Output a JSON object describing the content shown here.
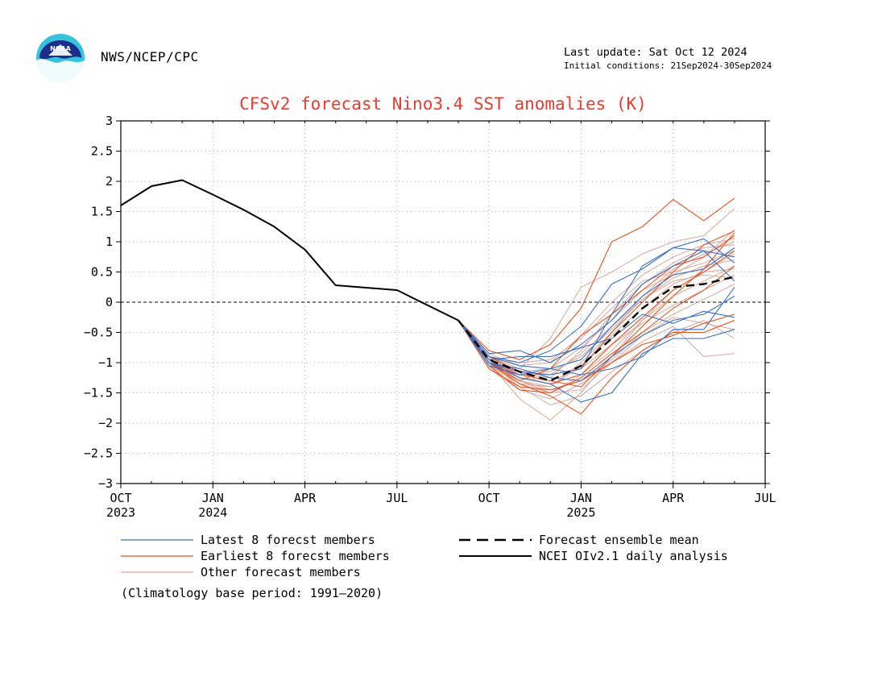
{
  "header": {
    "agency": "NWS/NCEP/CPC",
    "last_update": "Last update: Sat Oct 12 2024",
    "initial_conditions": "Initial conditions: 21Sep2024-30Sep2024",
    "logo_text": "NOAA"
  },
  "footnote": "(Climatology base period: 1991—2020)",
  "colors": {
    "title": "#ee3a2c",
    "latest": "#3a6fc4",
    "earliest": "#e8521f",
    "other": "#d8a89c",
    "mean": "#000000",
    "analysis": "#000000"
  },
  "chart_data": {
    "type": "line",
    "title": "CFSv2 forecast Nino3.4 SST anomalies (K)",
    "ylabel": "",
    "xlabel": "",
    "ylim": [
      -3,
      3
    ],
    "yticks": [
      "3",
      "2.5",
      "2",
      "1.5",
      "1",
      "0.5",
      "0",
      "−0.5",
      "−1",
      "−1.5",
      "−2",
      "−2.5",
      "−3"
    ],
    "xlim": [
      "2023-10",
      "2025-07"
    ],
    "xticks": [
      {
        "date": "2023-10",
        "label": "OCT",
        "year": "2023"
      },
      {
        "date": "2024-01",
        "label": "JAN",
        "year": "2024"
      },
      {
        "date": "2024-04",
        "label": "APR",
        "year": ""
      },
      {
        "date": "2024-07",
        "label": "JUL",
        "year": ""
      },
      {
        "date": "2024-10",
        "label": "OCT",
        "year": ""
      },
      {
        "date": "2025-01",
        "label": "JAN",
        "year": "2025"
      },
      {
        "date": "2025-04",
        "label": "APR",
        "year": ""
      },
      {
        "date": "2025-07",
        "label": "JUL",
        "year": ""
      }
    ],
    "grid": true,
    "zero_line": true,
    "legend": {
      "items": [
        {
          "label": "Latest 8 forecst members",
          "style": "latest"
        },
        {
          "label": "Earliest 8 forecst members",
          "style": "earliest"
        },
        {
          "label": "Other forecast members",
          "style": "other"
        },
        {
          "label": "Forecast ensemble mean",
          "style": "mean"
        },
        {
          "label": "NCEI OIv2.1 daily analysis",
          "style": "analysis"
        }
      ]
    },
    "forecast_months": [
      "2024-09",
      "2024-10",
      "2024-11",
      "2024-12",
      "2025-01",
      "2025-02",
      "2025-03",
      "2025-04",
      "2025-05",
      "2025-06"
    ],
    "analysis": {
      "name": "NCEI OIv2.1 daily analysis",
      "points": [
        {
          "x": "2023-10",
          "y": 1.6
        },
        {
          "x": "2023-11",
          "y": 1.92
        },
        {
          "x": "2023-12",
          "y": 2.02
        },
        {
          "x": "2024-01",
          "y": 1.78
        },
        {
          "x": "2024-02",
          "y": 1.53
        },
        {
          "x": "2024-03",
          "y": 1.25
        },
        {
          "x": "2024-04",
          "y": 0.87
        },
        {
          "x": "2024-05",
          "y": 0.28
        },
        {
          "x": "2024-07",
          "y": 0.2
        },
        {
          "x": "2024-08",
          "y": -0.05
        },
        {
          "x": "2024-09",
          "y": -0.3
        }
      ]
    },
    "ensemble_mean": {
      "name": "Forecast ensemble mean",
      "values": [
        -0.3,
        -0.95,
        -1.15,
        -1.3,
        -1.05,
        -0.6,
        -0.1,
        0.25,
        0.3,
        0.42
      ]
    },
    "latest_members": [
      [
        -0.3,
        -1.0,
        -1.25,
        -1.35,
        -1.65,
        -1.5,
        -0.85,
        -0.6,
        -0.6,
        -0.45
      ],
      [
        -0.3,
        -0.85,
        -0.8,
        -1.0,
        -0.7,
        -0.3,
        0.3,
        0.6,
        0.85,
        0.75
      ],
      [
        -0.3,
        -0.9,
        -1.05,
        -1.1,
        -0.95,
        -0.4,
        0.1,
        0.45,
        0.55,
        0.9
      ],
      [
        -0.3,
        -1.0,
        -1.15,
        -1.2,
        -1.1,
        -0.2,
        0.6,
        0.9,
        0.85,
        0.35
      ],
      [
        -0.3,
        -0.95,
        -0.9,
        -0.9,
        -0.75,
        -0.6,
        -0.2,
        -0.35,
        -0.15,
        -0.25
      ],
      [
        -0.3,
        -1.05,
        -1.2,
        -1.1,
        -1.2,
        -1.1,
        -0.9,
        -0.45,
        -0.45,
        0.25
      ],
      [
        -0.3,
        -1.0,
        -1.1,
        -1.25,
        -1.3,
        -0.9,
        -0.55,
        -0.3,
        -0.2,
        0.1
      ],
      [
        -0.3,
        -0.9,
        -1.0,
        -0.8,
        -0.4,
        0.3,
        0.55,
        0.9,
        1.05,
        0.65
      ]
    ],
    "earliest_members": [
      [
        -0.3,
        -1.0,
        -1.35,
        -1.55,
        -1.85,
        -1.25,
        -0.8,
        -0.5,
        -0.5,
        -0.3
      ],
      [
        -0.3,
        -0.8,
        -0.95,
        -0.7,
        -0.1,
        1.0,
        1.25,
        1.7,
        1.35,
        1.72
      ],
      [
        -0.3,
        -1.1,
        -1.4,
        -1.45,
        -1.3,
        -1.0,
        -0.7,
        -0.55,
        -0.35,
        -0.2
      ],
      [
        -0.3,
        -1.0,
        -1.2,
        -1.3,
        -1.4,
        -0.9,
        -0.4,
        0.1,
        0.55,
        1.15
      ],
      [
        -0.3,
        -0.9,
        -1.15,
        -1.2,
        -1.1,
        -0.5,
        0.0,
        0.5,
        0.95,
        1.18
      ],
      [
        -0.3,
        -1.05,
        -1.45,
        -1.5,
        -1.25,
        -0.85,
        -0.5,
        -0.1,
        0.2,
        0.6
      ],
      [
        -0.3,
        -0.95,
        -1.25,
        -1.35,
        -1.2,
        -0.7,
        -0.25,
        0.2,
        0.5,
        0.85
      ],
      [
        -0.3,
        -1.0,
        -1.3,
        -1.1,
        -0.55,
        -0.2,
        0.2,
        0.6,
        0.75,
        1.1
      ]
    ],
    "other_members": [
      [
        -0.3,
        -1.0,
        -1.6,
        -1.95,
        -1.5,
        -0.9,
        -0.3,
        0.2,
        0.5,
        0.8
      ],
      [
        -0.3,
        -0.9,
        -1.1,
        -0.6,
        0.25,
        0.5,
        0.8,
        1.0,
        1.1,
        1.55
      ],
      [
        -0.3,
        -1.05,
        -1.3,
        -1.4,
        -1.0,
        -0.5,
        0.1,
        0.55,
        0.8,
        1.0
      ],
      [
        -0.3,
        -0.95,
        -1.2,
        -1.25,
        -0.8,
        -0.2,
        0.3,
        0.65,
        0.9,
        0.95
      ],
      [
        -0.3,
        -1.0,
        -1.35,
        -1.5,
        -1.2,
        -0.8,
        -0.3,
        0.1,
        0.35,
        0.6
      ],
      [
        -0.3,
        -1.1,
        -1.45,
        -1.6,
        -1.35,
        -1.0,
        -0.65,
        -0.4,
        -0.9,
        -0.85
      ],
      [
        -0.3,
        -0.85,
        -1.05,
        -1.0,
        -0.55,
        0.0,
        0.45,
        0.75,
        0.95,
        1.05
      ],
      [
        -0.3,
        -1.0,
        -1.25,
        -1.3,
        -1.1,
        -0.7,
        -0.35,
        -0.05,
        0.2,
        0.45
      ],
      [
        -0.3,
        -0.95,
        -1.3,
        -1.45,
        -1.3,
        -0.95,
        -0.5,
        -0.2,
        0.05,
        0.3
      ],
      [
        -0.3,
        -1.05,
        -1.2,
        -1.15,
        -0.9,
        -0.45,
        0.05,
        0.4,
        0.6,
        0.7
      ],
      [
        -0.3,
        -0.9,
        -1.0,
        -0.95,
        -0.6,
        -0.1,
        0.35,
        0.5,
        0.65,
        0.85
      ],
      [
        -0.3,
        -1.0,
        -1.4,
        -1.7,
        -1.55,
        -1.15,
        -0.8,
        -0.5,
        -0.3,
        -0.6
      ],
      [
        -0.3,
        -0.95,
        -1.15,
        -1.1,
        -0.75,
        -0.3,
        0.2,
        0.45,
        0.75,
        1.2
      ],
      [
        -0.3,
        -1.05,
        -1.35,
        -1.4,
        -1.05,
        -0.55,
        -0.1,
        0.3,
        0.5,
        0.55
      ],
      [
        -0.3,
        -0.9,
        -1.2,
        -1.2,
        -0.85,
        -0.4,
        0.05,
        0.35,
        0.45,
        0.4
      ],
      [
        -0.3,
        -1.0,
        -1.3,
        -1.5,
        -1.45,
        -1.0,
        -0.55,
        -0.25,
        -0.35,
        -0.45
      ]
    ]
  }
}
